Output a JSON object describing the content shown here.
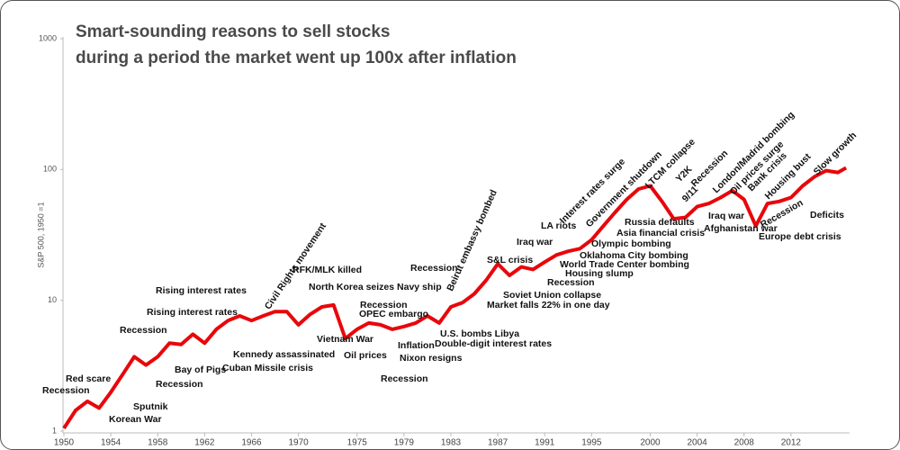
{
  "chart_data": {
    "type": "line",
    "title": "Smart-sounding reasons to sell stocks",
    "subtitle": "during a period the market went up 100x after inflation",
    "y_label": "S&P 500, 1950 =1",
    "log_scale": true,
    "xlim": [
      1950,
      2017
    ],
    "xticks": [
      1950,
      1954,
      1958,
      1962,
      1966,
      1970,
      1975,
      1979,
      1983,
      1987,
      1991,
      1995,
      2000,
      2004,
      2008,
      2012
    ],
    "ylim": [
      1,
      1000
    ],
    "yticks": [
      1,
      10,
      100,
      1000
    ],
    "series": [
      {
        "name": "S&P 500",
        "color": "#e8070b",
        "x": [
          1950,
          1951,
          1952,
          1953,
          1954,
          1955,
          1956,
          1957,
          1958,
          1959,
          1960,
          1961,
          1962,
          1963,
          1964,
          1965,
          1966,
          1967,
          1968,
          1969,
          1970,
          1971,
          1972,
          1973,
          1974,
          1975,
          1976,
          1977,
          1978,
          1979,
          1980,
          1981,
          1982,
          1983,
          1984,
          1985,
          1986,
          1987,
          1988,
          1989,
          1990,
          1991,
          1992,
          1993,
          1994,
          1995,
          1996,
          1997,
          1998,
          1999,
          2000,
          2001,
          2002,
          2003,
          2004,
          2005,
          2006,
          2007,
          2008,
          2009,
          2010,
          2011,
          2012,
          2013,
          2014,
          2015,
          2016,
          2016.7
        ],
        "values": [
          1.05,
          1.44,
          1.69,
          1.5,
          1.98,
          2.7,
          3.7,
          3.2,
          3.7,
          4.7,
          4.6,
          5.5,
          4.7,
          6.0,
          7.0,
          7.6,
          7.0,
          7.6,
          8.2,
          8.2,
          6.5,
          7.8,
          8.9,
          9.2,
          5.1,
          6.0,
          6.7,
          6.5,
          6.0,
          6.3,
          6.7,
          7.6,
          6.7,
          8.9,
          9.6,
          11.2,
          14.2,
          19,
          15.5,
          18,
          17.2,
          19.6,
          22.2,
          23.7,
          24.8,
          29,
          37,
          47,
          59,
          71,
          75,
          57,
          42,
          43,
          52,
          55,
          61,
          69,
          59,
          37,
          55,
          57,
          61,
          75,
          88,
          98,
          95,
          103
        ]
      }
    ],
    "annotations": [
      "Recession",
      "Red scare",
      "Sputnik",
      "Korean War",
      "Recession",
      "Rising interest rates",
      "Rising interest rates",
      "Recession",
      "Bay of Pigs",
      "Kennedy assassinated",
      "Cuban Missile crisis",
      "Civil Rights movement",
      "RFK/MLK killed",
      "North Korea seizes Navy ship",
      "Vietnam War",
      "Recession",
      "OPEC embargo",
      "Oil prices",
      "Inflation",
      "Nixon resigns",
      "Recession",
      "Recession",
      "Beirut embassy bombed",
      "U.S. bombs Libya",
      "Double-digit interest rates",
      "S&L crisis",
      "Market falls 22% in one day",
      "Soviet Union collapse",
      "Iraq war",
      "LA riots",
      "Interest rates surge",
      "Government shutdown",
      "LTCM collapse",
      "Recession",
      "Housing slump",
      "World Trade Center bombing",
      "Oklahoma City bombing",
      "Olympic bombing",
      "Asia financial crisis",
      "Russia defaults",
      "Y2K",
      "Recession",
      "9/11",
      "London/Madrid bombing",
      "Oil prices surge",
      "Iraq war",
      "Afghanistan war",
      "Bank crisis",
      "Housing bust",
      "Slow growth",
      "Recession",
      "Europe debt crisis",
      "Deficits"
    ]
  }
}
